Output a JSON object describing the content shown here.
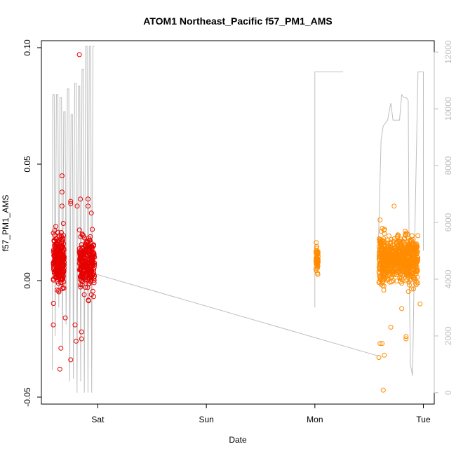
{
  "chart_data": {
    "type": "scatter",
    "title": "ATOM1 Northeast_Pacific f57_PM1_AMS",
    "xlabel": "Date",
    "ylabel": "f57_PM1_AMS",
    "x_ticks": [
      "Sat",
      "Sun",
      "Mon",
      "Tue"
    ],
    "y_ticks": [
      "-0.05",
      "0.00",
      "0.05",
      "0.10"
    ],
    "y2_ticks": [
      "0",
      "2000",
      "4000",
      "6000",
      "8000",
      "10000",
      "12000"
    ],
    "xlim_days": [
      -0.52,
      3.1
    ],
    "ylim": [
      -0.053,
      0.103
    ],
    "y2lim": [
      -400,
      12400
    ],
    "grid": false,
    "colors": {
      "series1": "#e60000",
      "series2": "#ff8c00",
      "altitude": "#bebebe",
      "axis": "#000000",
      "axis_right": "#bebebe"
    },
    "series": [
      {
        "color": "#e60000",
        "clusters": [
          {
            "x": -0.36,
            "dx": 0.05,
            "y": 0.009,
            "sd": 0.009,
            "n": 260
          },
          {
            "x": -0.1,
            "dx": 0.07,
            "y": 0.007,
            "sd": 0.009,
            "n": 280
          }
        ],
        "outliers": [
          {
            "x": -0.17,
            "y": 0.097
          },
          {
            "x": -0.33,
            "y": 0.045
          },
          {
            "x": -0.33,
            "y": 0.038
          },
          {
            "x": -0.33,
            "y": 0.032
          },
          {
            "x": -0.25,
            "y": 0.034
          },
          {
            "x": -0.25,
            "y": 0.033
          },
          {
            "x": -0.19,
            "y": 0.032
          },
          {
            "x": -0.16,
            "y": 0.035
          },
          {
            "x": -0.09,
            "y": 0.035
          },
          {
            "x": -0.09,
            "y": 0.032
          },
          {
            "x": -0.06,
            "y": 0.029
          },
          {
            "x": -0.41,
            "y": -0.019
          },
          {
            "x": -0.34,
            "y": -0.029
          },
          {
            "x": -0.35,
            "y": -0.038
          },
          {
            "x": -0.25,
            "y": -0.034
          },
          {
            "x": -0.2,
            "y": -0.026
          },
          {
            "x": -0.15,
            "y": -0.022
          },
          {
            "x": -0.15,
            "y": -0.025
          },
          {
            "x": -0.21,
            "y": -0.019
          },
          {
            "x": -0.3,
            "y": -0.016
          }
        ]
      },
      {
        "color": "#ff8c00",
        "clusters": [
          {
            "x": 2.02,
            "dx": 0.01,
            "y": 0.009,
            "sd": 0.004,
            "n": 60
          },
          {
            "x": 2.62,
            "dx": 0.03,
            "y": 0.009,
            "sd": 0.009,
            "n": 160
          },
          {
            "x": 2.8,
            "dx": 0.15,
            "y": 0.009,
            "sd": 0.008,
            "n": 540
          }
        ],
        "outliers": [
          {
            "x": 2.73,
            "y": 0.032
          },
          {
            "x": 2.6,
            "y": -0.027
          },
          {
            "x": 2.62,
            "y": -0.027
          },
          {
            "x": 2.64,
            "y": -0.032
          },
          {
            "x": 2.59,
            "y": -0.033
          },
          {
            "x": 2.63,
            "y": -0.047
          },
          {
            "x": 2.7,
            "y": -0.02
          },
          {
            "x": 2.84,
            "y": -0.024
          },
          {
            "x": 2.84,
            "y": -0.025
          },
          {
            "x": 2.97,
            "y": -0.01
          },
          {
            "x": 2.8,
            "y": -0.012
          }
        ]
      }
    ],
    "altitude_segments": [
      {
        "x0": -0.41,
        "x1": -0.04,
        "base": 800,
        "peaks": [
          10500,
          10500,
          10400,
          9900,
          10700,
          9800,
          10900,
          10800,
          11400,
          12200,
          12200,
          12200
        ],
        "lows": [
          2000,
          3000,
          1600,
          2400,
          400,
          500,
          0,
          400,
          0,
          0,
          0
        ]
      },
      {
        "points": [
          [
            -0.04,
            4200
          ],
          [
            2.58,
            1300
          ]
        ]
      },
      {
        "points": [
          [
            2.0,
            3000
          ],
          [
            2.0,
            7000
          ],
          [
            2.0,
            11300
          ],
          [
            2.26,
            11300
          ],
          [
            2.26,
            11300
          ]
        ]
      },
      {
        "points": [
          [
            2.58,
            4500
          ],
          [
            2.61,
            8900
          ],
          [
            2.63,
            9400
          ],
          [
            2.67,
            9600
          ],
          [
            2.7,
            10200
          ],
          [
            2.72,
            9600
          ],
          [
            2.78,
            9600
          ],
          [
            2.8,
            10500
          ],
          [
            2.82,
            10400
          ],
          [
            2.84,
            10400
          ],
          [
            2.86,
            10300
          ],
          [
            2.87,
            4000
          ],
          [
            2.88,
            1000
          ],
          [
            2.9,
            600
          ],
          [
            2.92,
            5500
          ],
          [
            2.95,
            11300
          ],
          [
            3.0,
            11300
          ],
          [
            3.0,
            5000
          ]
        ]
      }
    ]
  }
}
